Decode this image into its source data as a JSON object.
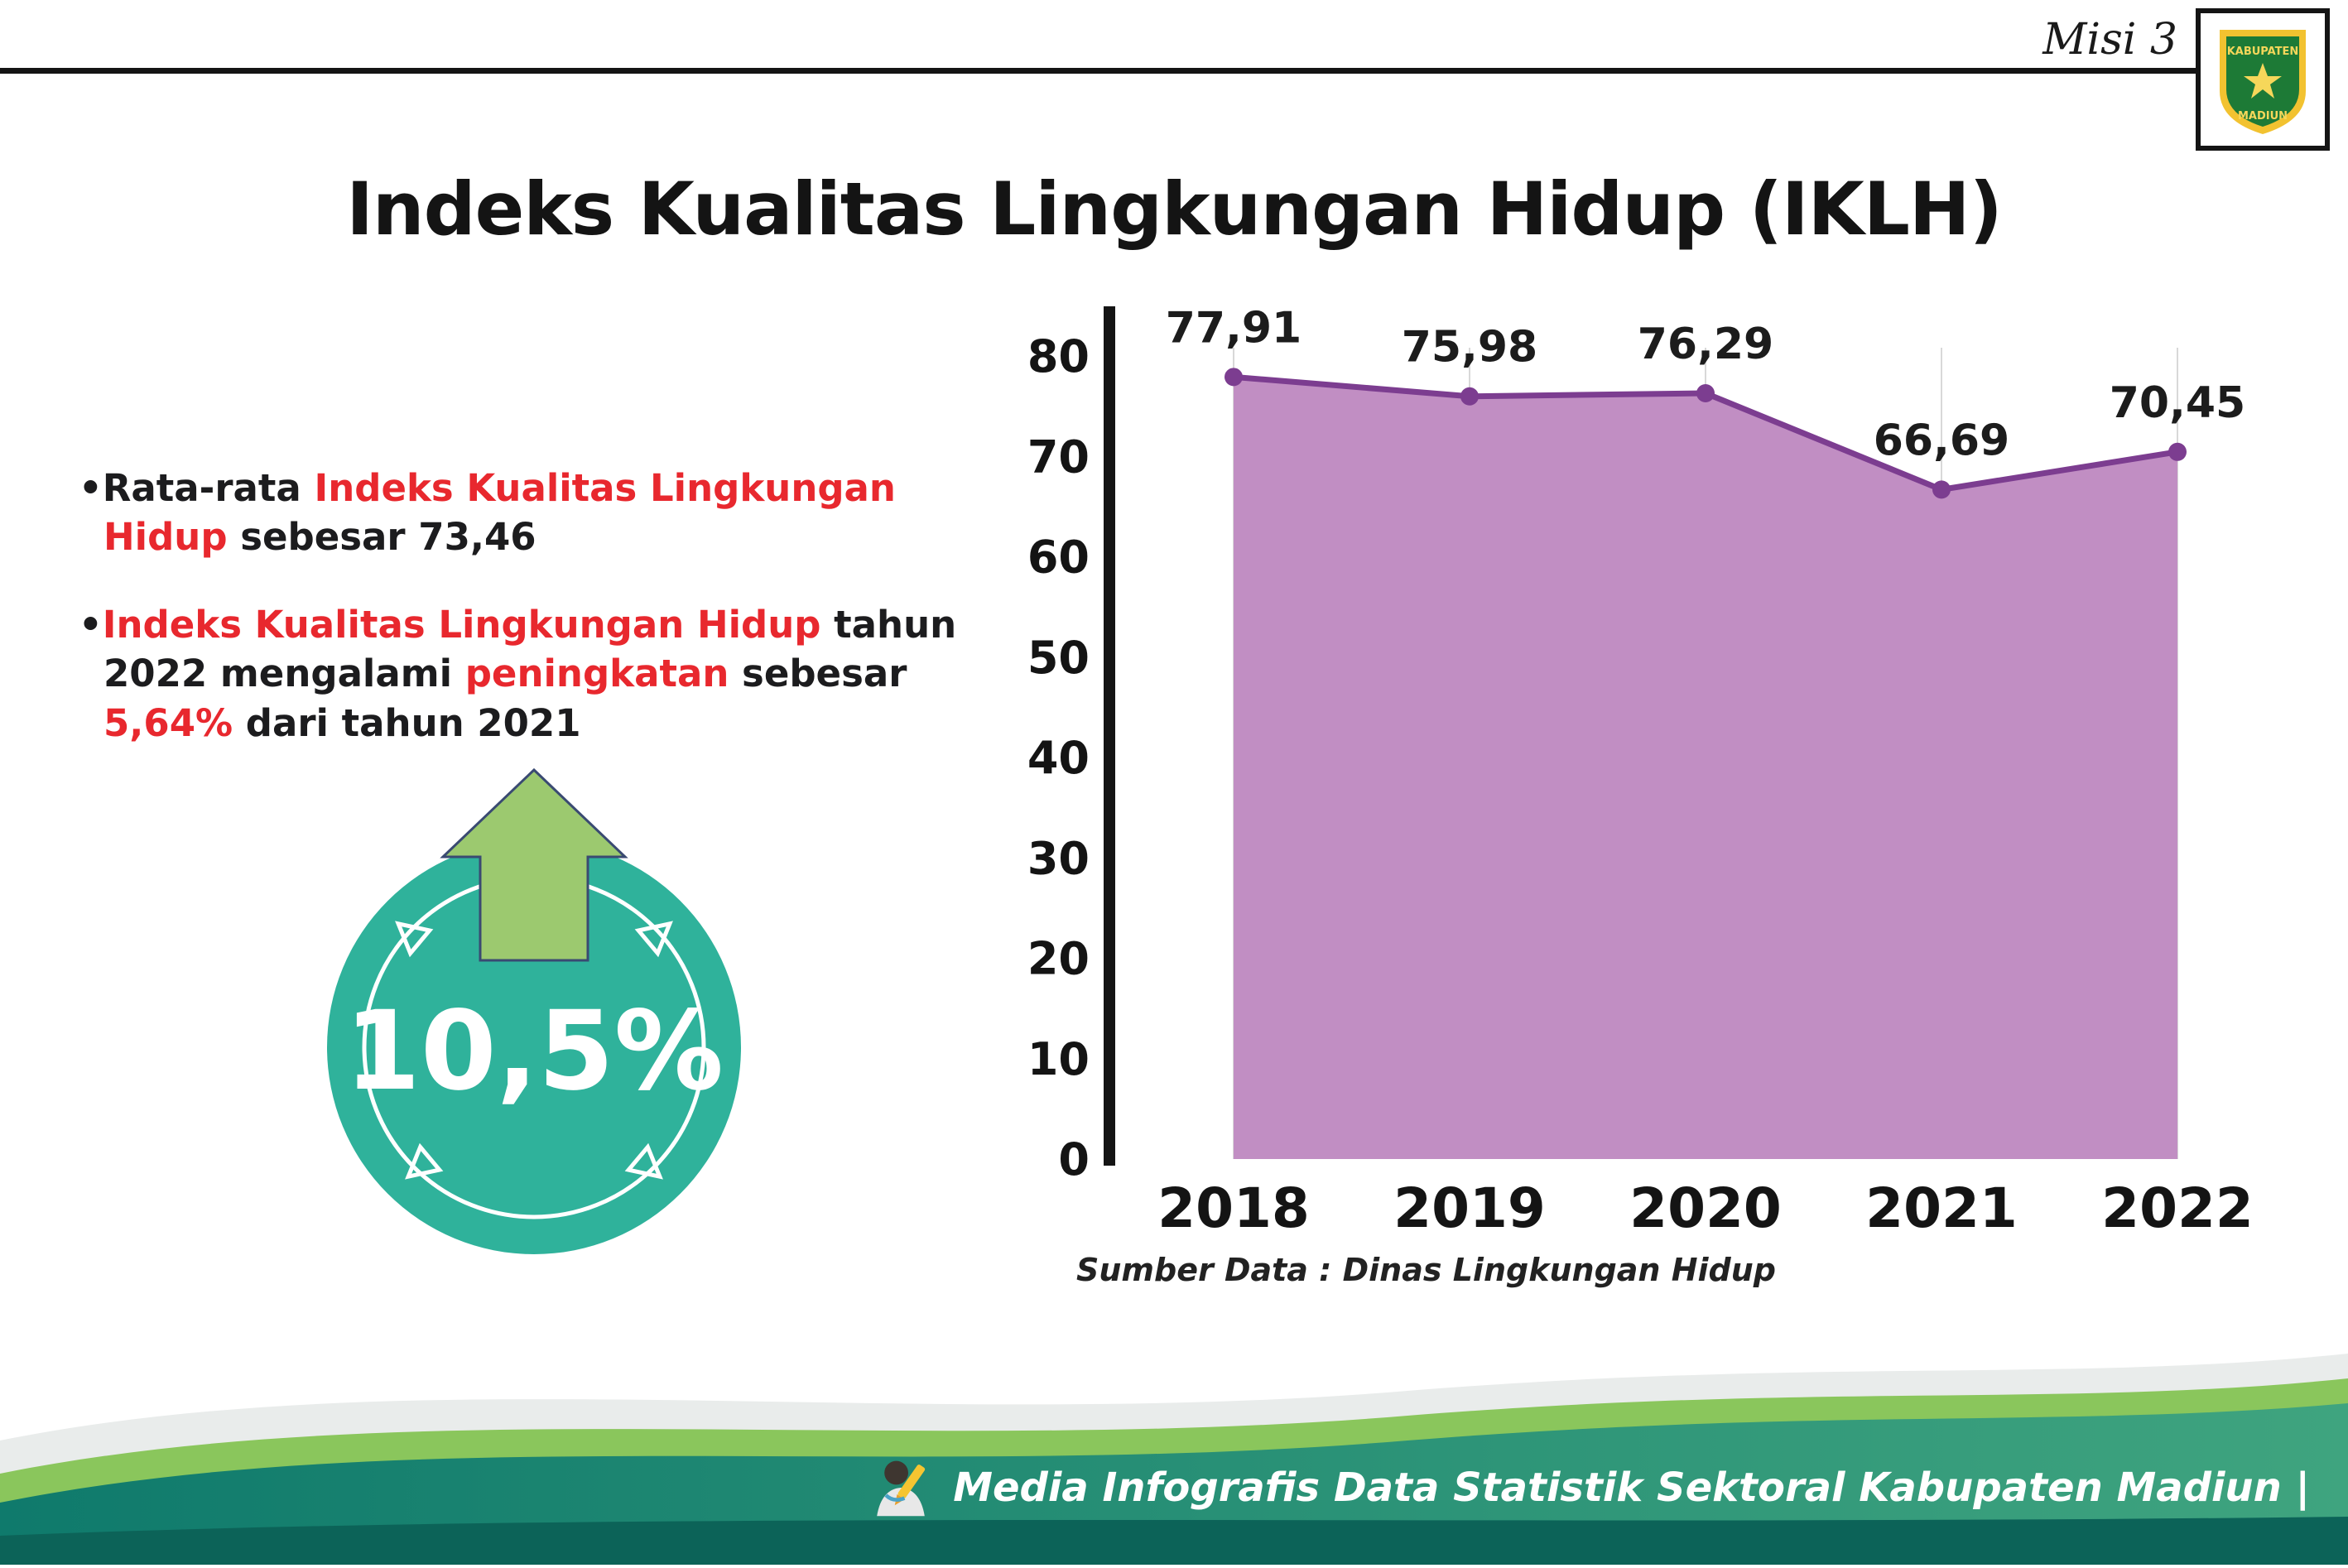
{
  "header": {
    "misi_label": "Misi 3",
    "title": "Indeks Kualitas Lingkungan Hidup (IKLH)",
    "logo": {
      "top_text": "KABUPATEN",
      "bottom_text": "MADIUN"
    }
  },
  "highlights": {
    "bullet_marker": "•",
    "bullets": [
      {
        "segments": [
          {
            "text": "Rata-rata ",
            "color": "default"
          },
          {
            "text": "Indeks Kualitas Lingkungan Hidup",
            "color": "red"
          },
          {
            "text": " sebesar 73,46",
            "color": "default"
          }
        ]
      },
      {
        "segments": [
          {
            "text": "Indeks Kualitas Lingkungan Hidup",
            "color": "red"
          },
          {
            "text": " tahun 2022 mengalami ",
            "color": "default"
          },
          {
            "text": "peningkatan",
            "color": "red"
          },
          {
            "text": " sebesar ",
            "color": "default"
          },
          {
            "text": "5,64%",
            "color": "red"
          },
          {
            "text": " dari tahun 2021",
            "color": "default"
          }
        ]
      }
    ],
    "badge": {
      "value": "10,5%",
      "circle_color": "#2fb29b",
      "arrow_color": "#9cc96f"
    }
  },
  "chart_data": {
    "type": "area",
    "title": "Indeks Kualitas Lingkungan Hidup (IKLH)",
    "categories": [
      "2018",
      "2019",
      "2020",
      "2021",
      "2022"
    ],
    "values": [
      77.91,
      75.98,
      76.29,
      66.69,
      70.45
    ],
    "value_labels": [
      "77,91",
      "75,98",
      "76,29",
      "66,69",
      "70,45"
    ],
    "xlabel": "",
    "ylabel": "",
    "ylim": [
      0,
      80
    ],
    "yticks": [
      0,
      10,
      20,
      30,
      40,
      50,
      60,
      70,
      80
    ],
    "grid": "vertical-light",
    "legend": "none",
    "area_color": "#c18ec3",
    "line_color": "#7c3d90",
    "source_note": "Sumber Data : Dinas Lingkungan Hidup"
  },
  "footer": {
    "caption": "Media Infografis Data Statistik Sektoral Kabupaten Madiun |"
  },
  "colors": {
    "accent_red": "#e8282e",
    "badge_teal": "#2fb29b",
    "arrow_green": "#9cc96f",
    "area_purple": "#c18ec3",
    "line_purple": "#7c3d90",
    "footer_teal_dark": "#0c6358",
    "footer_teal": "#15806f",
    "footer_green": "#57b486"
  }
}
